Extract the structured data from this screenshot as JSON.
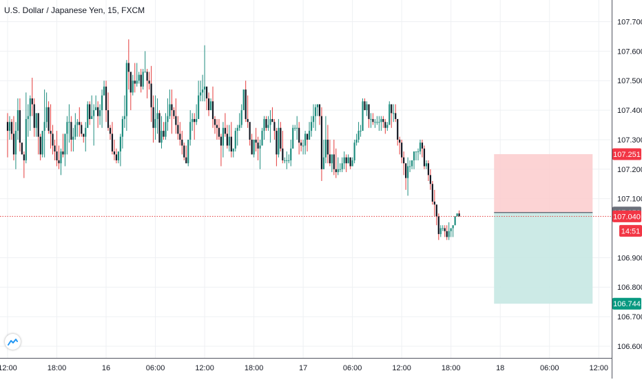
{
  "title": "U.S. Dollar / Japanese Yen, 15, FXCM",
  "colors": {
    "up": "#1e8c7e",
    "down": "#131722",
    "wick_up": "#1e8c7e",
    "wick_down": "#e33a3a",
    "stop_zone": "#fccbcd",
    "target_zone": "#c7e8e3",
    "price_line": "#e33a3a",
    "grid": "#eef0f3",
    "axis_text": "#131722"
  },
  "icons": {
    "logo": "tradingview-logo-icon"
  },
  "chart_data": {
    "type": "candlestick",
    "symbol": "U.S. Dollar / Japanese Yen",
    "interval": "15",
    "source": "FXCM",
    "ylim": [
      106.55,
      107.82
    ],
    "xlim": [
      0,
      293
    ],
    "grid": true,
    "y_ticks": [
      "107.700",
      "107.600",
      "107.500",
      "107.400",
      "107.300",
      "107.200",
      "107.100",
      "106.900",
      "106.800",
      "106.700",
      "106.600"
    ],
    "y_tick_values": [
      107.7,
      107.6,
      107.5,
      107.4,
      107.3,
      107.2,
      107.1,
      106.9,
      106.8,
      106.7,
      106.6
    ],
    "x_ticks": [
      "12:00",
      "18:00",
      "16",
      "06:00",
      "12:00",
      "18:00",
      "17",
      "06:00",
      "12:00",
      "18:00",
      "18",
      "06:00",
      "12:00"
    ],
    "x_tick_positions": [
      0,
      24,
      48,
      72,
      96,
      120,
      144,
      168,
      192,
      216,
      240,
      264,
      288
    ],
    "price_labels": [
      {
        "value": "107.251",
        "y": 107.251,
        "style": "stop"
      },
      {
        "value": "107.053",
        "y": 107.053,
        "style": "entry"
      },
      {
        "value": "107.040",
        "y": 107.04,
        "style": "last"
      },
      {
        "value": "14:51",
        "style": "countdown"
      },
      {
        "value": "106.744",
        "y": 106.744,
        "style": "target"
      }
    ],
    "last_price": 107.04,
    "position": {
      "type": "short",
      "start_bar": 237,
      "end_bar": 285,
      "entry": 107.053,
      "stop": 107.251,
      "target": 106.744
    },
    "ohlc": [
      [
        107.36,
        107.39,
        107.24,
        107.33
      ],
      [
        107.33,
        107.38,
        107.3,
        107.36
      ],
      [
        107.36,
        107.37,
        107.3,
        107.32
      ],
      [
        107.32,
        107.38,
        107.23,
        107.25
      ],
      [
        107.25,
        107.36,
        107.2,
        107.33
      ],
      [
        107.33,
        107.44,
        107.3,
        107.4
      ],
      [
        107.4,
        107.44,
        107.26,
        107.29
      ],
      [
        107.29,
        107.29,
        107.25,
        107.25
      ],
      [
        107.25,
        107.26,
        107.17,
        107.23
      ],
      [
        107.23,
        107.46,
        107.22,
        107.37
      ],
      [
        107.37,
        107.42,
        107.31,
        107.38
      ],
      [
        107.38,
        107.45,
        107.33,
        107.44
      ],
      [
        107.44,
        107.51,
        107.38,
        107.42
      ],
      [
        107.42,
        107.44,
        107.31,
        107.34
      ],
      [
        107.34,
        107.39,
        107.31,
        107.39
      ],
      [
        107.39,
        107.39,
        107.25,
        107.31
      ],
      [
        107.31,
        107.32,
        107.23,
        107.25
      ],
      [
        107.25,
        107.33,
        107.24,
        107.33
      ],
      [
        107.33,
        107.47,
        107.24,
        107.36
      ],
      [
        107.36,
        107.46,
        107.34,
        107.41
      ],
      [
        107.41,
        107.43,
        107.32,
        107.33
      ],
      [
        107.33,
        107.42,
        107.27,
        107.32
      ],
      [
        107.32,
        107.35,
        107.25,
        107.28
      ],
      [
        107.28,
        107.3,
        107.23,
        107.26
      ],
      [
        107.26,
        107.33,
        107.21,
        107.23
      ],
      [
        107.23,
        107.28,
        107.2,
        107.22
      ],
      [
        107.22,
        107.27,
        107.18,
        107.26
      ],
      [
        107.26,
        107.32,
        107.24,
        107.25
      ],
      [
        107.25,
        107.32,
        107.21,
        107.32
      ],
      [
        107.32,
        107.38,
        107.25,
        107.36
      ],
      [
        107.36,
        107.42,
        107.29,
        107.36
      ],
      [
        107.36,
        107.38,
        107.26,
        107.3
      ],
      [
        107.3,
        107.34,
        107.26,
        107.31
      ],
      [
        107.31,
        107.39,
        107.3,
        107.35
      ],
      [
        107.35,
        107.37,
        107.31,
        107.36
      ],
      [
        107.36,
        107.41,
        107.31,
        107.35
      ],
      [
        107.35,
        107.36,
        107.31,
        107.32
      ],
      [
        107.32,
        107.32,
        107.29,
        107.31
      ],
      [
        107.31,
        107.36,
        107.26,
        107.34
      ],
      [
        107.34,
        107.43,
        107.34,
        107.42
      ],
      [
        107.42,
        107.43,
        107.35,
        107.37
      ],
      [
        107.37,
        107.45,
        107.37,
        107.38
      ],
      [
        107.38,
        107.42,
        107.28,
        107.4
      ],
      [
        107.4,
        107.45,
        107.4,
        107.41
      ],
      [
        107.41,
        107.43,
        107.34,
        107.38
      ],
      [
        107.38,
        107.42,
        107.35,
        107.4
      ],
      [
        107.4,
        107.47,
        107.34,
        107.45
      ],
      [
        107.45,
        107.5,
        107.45,
        107.48
      ],
      [
        107.48,
        107.5,
        107.36,
        107.4
      ],
      [
        107.4,
        107.46,
        107.33,
        107.34
      ],
      [
        107.34,
        107.35,
        107.3,
        107.32
      ],
      [
        107.32,
        107.36,
        107.25,
        107.26
      ],
      [
        107.26,
        107.3,
        107.23,
        107.25
      ],
      [
        107.25,
        107.27,
        107.22,
        107.23
      ],
      [
        107.23,
        107.26,
        107.22,
        107.26
      ],
      [
        107.26,
        107.32,
        107.21,
        107.31
      ],
      [
        107.31,
        107.38,
        107.27,
        107.37
      ],
      [
        107.37,
        107.45,
        107.34,
        107.38
      ],
      [
        107.38,
        107.57,
        107.33,
        107.56
      ],
      [
        107.56,
        107.64,
        107.47,
        107.53
      ],
      [
        107.53,
        107.53,
        107.4,
        107.46
      ],
      [
        107.46,
        107.52,
        107.45,
        107.5
      ],
      [
        107.5,
        107.56,
        107.46,
        107.49
      ],
      [
        107.49,
        107.56,
        107.48,
        107.5
      ],
      [
        107.5,
        107.53,
        107.49,
        107.52
      ],
      [
        107.52,
        107.54,
        107.46,
        107.48
      ],
      [
        107.48,
        107.54,
        107.47,
        107.53
      ],
      [
        107.53,
        107.6,
        107.53,
        107.53
      ],
      [
        107.53,
        107.54,
        107.44,
        107.5
      ],
      [
        107.5,
        107.53,
        107.47,
        107.49
      ],
      [
        107.49,
        107.55,
        107.36,
        107.41
      ],
      [
        107.41,
        107.45,
        107.29,
        107.34
      ],
      [
        107.34,
        107.45,
        107.3,
        107.37
      ],
      [
        107.37,
        107.44,
        107.32,
        107.39
      ],
      [
        107.39,
        107.4,
        107.29,
        107.29
      ],
      [
        107.29,
        107.38,
        107.27,
        107.33
      ],
      [
        107.33,
        107.36,
        107.3,
        107.31
      ],
      [
        107.31,
        107.39,
        107.3,
        107.36
      ],
      [
        107.36,
        107.44,
        107.33,
        107.38
      ],
      [
        107.38,
        107.47,
        107.37,
        107.42
      ],
      [
        107.42,
        107.47,
        107.32,
        107.4
      ],
      [
        107.4,
        107.41,
        107.37,
        107.38
      ],
      [
        107.38,
        107.44,
        107.32,
        107.35
      ],
      [
        107.35,
        107.38,
        107.3,
        107.32
      ],
      [
        107.32,
        107.36,
        107.28,
        107.3
      ],
      [
        107.3,
        107.33,
        107.25,
        107.28
      ],
      [
        107.28,
        107.29,
        107.23,
        107.24
      ],
      [
        107.24,
        107.28,
        107.22,
        107.22
      ],
      [
        107.22,
        107.3,
        107.21,
        107.3
      ],
      [
        107.3,
        107.4,
        107.28,
        107.36
      ],
      [
        107.36,
        107.39,
        107.33,
        107.37
      ],
      [
        107.37,
        107.39,
        107.3,
        107.36
      ],
      [
        107.36,
        107.42,
        107.35,
        107.37
      ],
      [
        107.37,
        107.5,
        107.37,
        107.45
      ],
      [
        107.45,
        107.5,
        107.43,
        107.46
      ],
      [
        107.46,
        107.52,
        107.43,
        107.47
      ],
      [
        107.47,
        107.62,
        107.43,
        107.48
      ],
      [
        107.48,
        107.48,
        107.4,
        107.44
      ],
      [
        107.44,
        107.46,
        107.38,
        107.4
      ],
      [
        107.4,
        107.44,
        107.4,
        107.43
      ],
      [
        107.43,
        107.48,
        107.34,
        107.37
      ],
      [
        107.37,
        107.38,
        107.32,
        107.35
      ],
      [
        107.35,
        107.37,
        107.3,
        107.34
      ],
      [
        107.34,
        107.37,
        107.3,
        107.31
      ],
      [
        107.31,
        107.32,
        107.21,
        107.28
      ],
      [
        107.28,
        107.36,
        107.24,
        107.34
      ],
      [
        107.34,
        107.39,
        107.31,
        107.32
      ],
      [
        107.32,
        107.35,
        107.27,
        107.28
      ],
      [
        107.28,
        107.35,
        107.26,
        107.31
      ],
      [
        107.31,
        107.36,
        107.24,
        107.26
      ],
      [
        107.26,
        107.27,
        107.24,
        107.27
      ],
      [
        107.27,
        107.34,
        107.26,
        107.33
      ],
      [
        107.33,
        107.35,
        107.28,
        107.34
      ],
      [
        107.34,
        107.39,
        107.33,
        107.35
      ],
      [
        107.35,
        107.42,
        107.34,
        107.4
      ],
      [
        107.4,
        107.47,
        107.4,
        107.47
      ],
      [
        107.47,
        107.5,
        107.36,
        107.37
      ],
      [
        107.37,
        107.45,
        107.34,
        107.36
      ],
      [
        107.36,
        107.36,
        107.28,
        107.3
      ],
      [
        107.3,
        107.32,
        107.25,
        107.25
      ],
      [
        107.25,
        107.3,
        107.24,
        107.3
      ],
      [
        107.3,
        107.34,
        107.26,
        107.29
      ],
      [
        107.29,
        107.31,
        107.23,
        107.27
      ],
      [
        107.27,
        107.3,
        107.2,
        107.28
      ],
      [
        107.28,
        107.34,
        107.28,
        107.33
      ],
      [
        107.33,
        107.38,
        107.3,
        107.37
      ],
      [
        107.37,
        107.38,
        107.33,
        107.34
      ],
      [
        107.34,
        107.38,
        107.33,
        107.35
      ],
      [
        107.35,
        107.4,
        107.29,
        107.37
      ],
      [
        107.37,
        107.41,
        107.36,
        107.36
      ],
      [
        107.36,
        107.37,
        107.3,
        107.33
      ],
      [
        107.33,
        107.34,
        107.21,
        107.25
      ],
      [
        107.25,
        107.37,
        107.24,
        107.34
      ],
      [
        107.34,
        107.36,
        107.26,
        107.27
      ],
      [
        107.27,
        107.33,
        107.22,
        107.23
      ],
      [
        107.23,
        107.24,
        107.22,
        107.23
      ],
      [
        107.23,
        107.26,
        107.2,
        107.23
      ],
      [
        107.23,
        107.25,
        107.22,
        107.23
      ],
      [
        107.23,
        107.3,
        107.21,
        107.27
      ],
      [
        107.27,
        107.35,
        107.27,
        107.34
      ],
      [
        107.34,
        107.35,
        107.33,
        107.34
      ],
      [
        107.34,
        107.38,
        107.3,
        107.34
      ],
      [
        107.34,
        107.36,
        107.25,
        107.29
      ],
      [
        107.29,
        107.3,
        107.26,
        107.28
      ],
      [
        107.28,
        107.3,
        107.25,
        107.28
      ],
      [
        107.28,
        107.33,
        107.25,
        107.32
      ],
      [
        107.32,
        107.32,
        107.26,
        107.3
      ],
      [
        107.3,
        107.36,
        107.3,
        107.33
      ],
      [
        107.33,
        107.38,
        107.31,
        107.36
      ],
      [
        107.36,
        107.42,
        107.34,
        107.38
      ],
      [
        107.38,
        107.42,
        107.33,
        107.41
      ],
      [
        107.41,
        107.42,
        107.38,
        107.42
      ],
      [
        107.42,
        107.42,
        107.35,
        107.38
      ],
      [
        107.38,
        107.41,
        107.16,
        107.2
      ],
      [
        107.2,
        107.3,
        107.2,
        107.24
      ],
      [
        107.24,
        107.38,
        107.22,
        107.3
      ],
      [
        107.3,
        107.35,
        107.22,
        107.25
      ],
      [
        107.25,
        107.3,
        107.21,
        107.22
      ],
      [
        107.22,
        107.25,
        107.19,
        107.25
      ],
      [
        107.25,
        107.3,
        107.18,
        107.2
      ],
      [
        107.2,
        107.27,
        107.17,
        107.19
      ],
      [
        107.19,
        107.24,
        107.18,
        107.2
      ],
      [
        107.2,
        107.22,
        107.19,
        107.2
      ],
      [
        107.2,
        107.24,
        107.19,
        107.22
      ],
      [
        107.22,
        107.26,
        107.2,
        107.24
      ],
      [
        107.24,
        107.25,
        107.19,
        107.22
      ],
      [
        107.22,
        107.25,
        107.22,
        107.24
      ],
      [
        107.24,
        107.24,
        107.2,
        107.21
      ],
      [
        107.21,
        107.24,
        107.21,
        107.23
      ],
      [
        107.23,
        107.3,
        107.22,
        107.29
      ],
      [
        107.29,
        107.32,
        107.28,
        107.3
      ],
      [
        107.3,
        107.36,
        107.29,
        107.33
      ],
      [
        107.33,
        107.35,
        107.31,
        107.33
      ],
      [
        107.33,
        107.44,
        107.33,
        107.43
      ],
      [
        107.43,
        107.44,
        107.4,
        107.4
      ],
      [
        107.4,
        107.43,
        107.38,
        107.42
      ],
      [
        107.42,
        107.42,
        107.34,
        107.37
      ],
      [
        107.37,
        107.39,
        107.34,
        107.37
      ],
      [
        107.37,
        107.39,
        107.35,
        107.36
      ],
      [
        107.36,
        107.37,
        107.34,
        107.36
      ],
      [
        107.36,
        107.38,
        107.35,
        107.36
      ],
      [
        107.36,
        107.38,
        107.33,
        107.36
      ],
      [
        107.36,
        107.38,
        107.33,
        107.37
      ],
      [
        107.37,
        107.38,
        107.34,
        107.36
      ],
      [
        107.36,
        107.37,
        107.32,
        107.34
      ],
      [
        107.34,
        107.36,
        107.33,
        107.35
      ],
      [
        107.35,
        107.43,
        107.35,
        107.42
      ],
      [
        107.42,
        107.42,
        107.34,
        107.39
      ],
      [
        107.39,
        107.42,
        107.36,
        107.39
      ],
      [
        107.39,
        107.42,
        107.36,
        107.37
      ],
      [
        107.37,
        107.37,
        107.28,
        107.3
      ],
      [
        107.3,
        107.31,
        107.25,
        107.29
      ],
      [
        107.29,
        107.3,
        107.22,
        107.24
      ],
      [
        107.24,
        107.26,
        107.18,
        107.22
      ],
      [
        107.22,
        107.22,
        107.13,
        107.17
      ],
      [
        107.17,
        107.24,
        107.11,
        107.21
      ],
      [
        107.21,
        107.23,
        107.19,
        107.21
      ],
      [
        107.21,
        107.23,
        107.2,
        107.23
      ],
      [
        107.23,
        107.26,
        107.2,
        107.26
      ],
      [
        107.26,
        107.26,
        107.23,
        107.26
      ],
      [
        107.26,
        107.27,
        107.23,
        107.26
      ],
      [
        107.26,
        107.3,
        107.25,
        107.29
      ],
      [
        107.29,
        107.3,
        107.24,
        107.27
      ],
      [
        107.27,
        107.28,
        107.2,
        107.21
      ],
      [
        107.21,
        107.23,
        107.2,
        107.22
      ],
      [
        107.22,
        107.23,
        107.16,
        107.18
      ],
      [
        107.18,
        107.2,
        107.13,
        107.15
      ],
      [
        107.15,
        107.16,
        107.08,
        107.09
      ],
      [
        107.09,
        107.13,
        107.04,
        107.08
      ],
      [
        107.08,
        107.08,
        107.01,
        107.04
      ],
      [
        107.04,
        107.05,
        106.96,
        106.98
      ],
      [
        106.98,
        107.01,
        106.97,
        107.0
      ],
      [
        107.0,
        107.01,
        106.99,
        107.0
      ],
      [
        107.0,
        107.01,
        106.97,
        106.99
      ],
      [
        106.99,
        107.01,
        106.96,
        106.97
      ],
      [
        106.97,
        107.02,
        106.96,
        106.99
      ],
      [
        106.99,
        107.0,
        106.97,
        107.0
      ],
      [
        107.0,
        107.01,
        106.97,
        107.01
      ],
      [
        107.01,
        107.04,
        107.01,
        107.04
      ],
      [
        107.04,
        107.05,
        107.04,
        107.05
      ],
      [
        107.05,
        107.06,
        107.04,
        107.04
      ]
    ]
  }
}
